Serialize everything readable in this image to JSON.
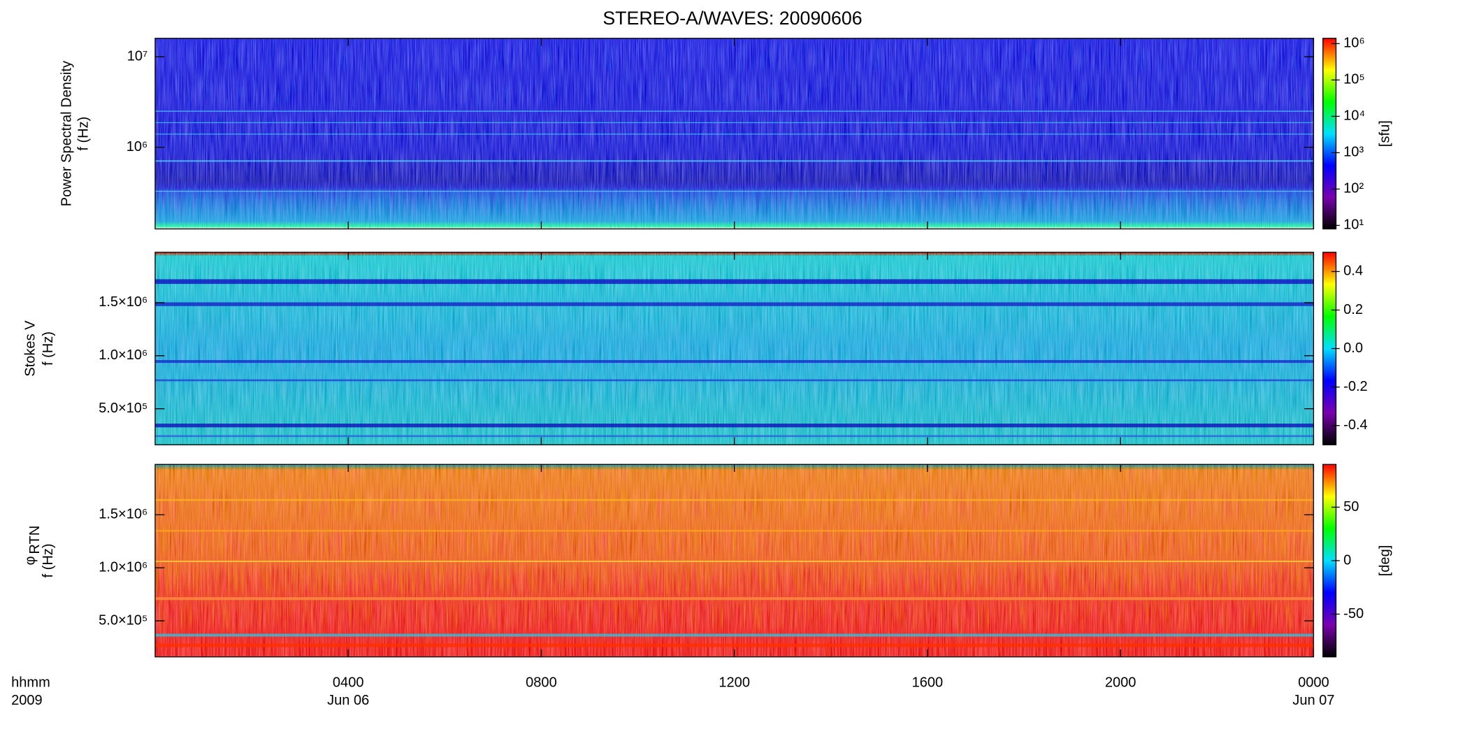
{
  "chart_data": {
    "type": "spectrogram",
    "title": "STEREO-A/WAVES: 20090606",
    "x_label": [
      "hhmm",
      "2009"
    ],
    "xlim": [
      0,
      24
    ],
    "xticks": [
      {
        "value": 4,
        "label": "0400"
      },
      {
        "value": 8,
        "label": "0800"
      },
      {
        "value": 12,
        "label": "1200"
      },
      {
        "value": 16,
        "label": "1600"
      },
      {
        "value": 20,
        "label": "2000"
      },
      {
        "value": 24,
        "label": "0000"
      }
    ],
    "date_ticks": [
      {
        "value": 4,
        "label": "Jun 06"
      },
      {
        "value": 24,
        "label": "Jun 07"
      }
    ],
    "colormap": [
      "#000000",
      "#7a00b0",
      "#0000ff",
      "#00e0ff",
      "#00ff00",
      "#ffff00",
      "#ff0000"
    ],
    "panels": [
      {
        "y_label": [
          "Power Spectral Density",
          "f (Hz)"
        ],
        "ylog": true,
        "ylim": [
          125000,
          16000000
        ],
        "yticks": [
          {
            "value": 1000000,
            "label": "10⁶"
          },
          {
            "value": 10000000,
            "label": "10⁷"
          }
        ],
        "colorbar": {
          "log": true,
          "lim": [
            8,
            1400000
          ],
          "label": "[sfu]",
          "ticks": [
            {
              "value": 10,
              "label": "10¹"
            },
            {
              "value": 100,
              "label": "10²"
            },
            {
              "value": 1000,
              "label": "10³"
            },
            {
              "value": 10000,
              "label": "10⁴"
            },
            {
              "value": 100000,
              "label": "10⁵"
            },
            {
              "value": 1000000,
              "label": "10⁶"
            }
          ]
        }
      },
      {
        "y_label": [
          "Stokes V",
          "f (Hz)"
        ],
        "ylog": false,
        "ylim": [
          160000,
          1975000
        ],
        "yticks": [
          {
            "value": 500000,
            "label": "5.0×10⁵"
          },
          {
            "value": 1000000,
            "label": "1.0×10⁶"
          },
          {
            "value": 1500000,
            "label": "1.5×10⁶"
          }
        ],
        "colorbar": {
          "log": false,
          "lim": [
            -0.5,
            0.5
          ],
          "ticks": [
            -0.4,
            -0.2,
            {
              "value": 0,
              "label": "0.0"
            },
            0.2,
            0.4
          ]
        }
      },
      {
        "y_label": [
          "φ",
          "f (Hz)"
        ],
        "y_label_sub": "RTN",
        "ylog": false,
        "ylim": [
          160000,
          1975000
        ],
        "yticks": [
          {
            "value": 500000,
            "label": "5.0×10⁵"
          },
          {
            "value": 1000000,
            "label": "1.0×10⁶"
          },
          {
            "value": 1500000,
            "label": "1.5×10⁶"
          }
        ],
        "colorbar": {
          "log": false,
          "lim": [
            -90,
            90
          ],
          "label": "[deg]",
          "ticks": [
            -50,
            0,
            50
          ]
        }
      }
    ]
  }
}
